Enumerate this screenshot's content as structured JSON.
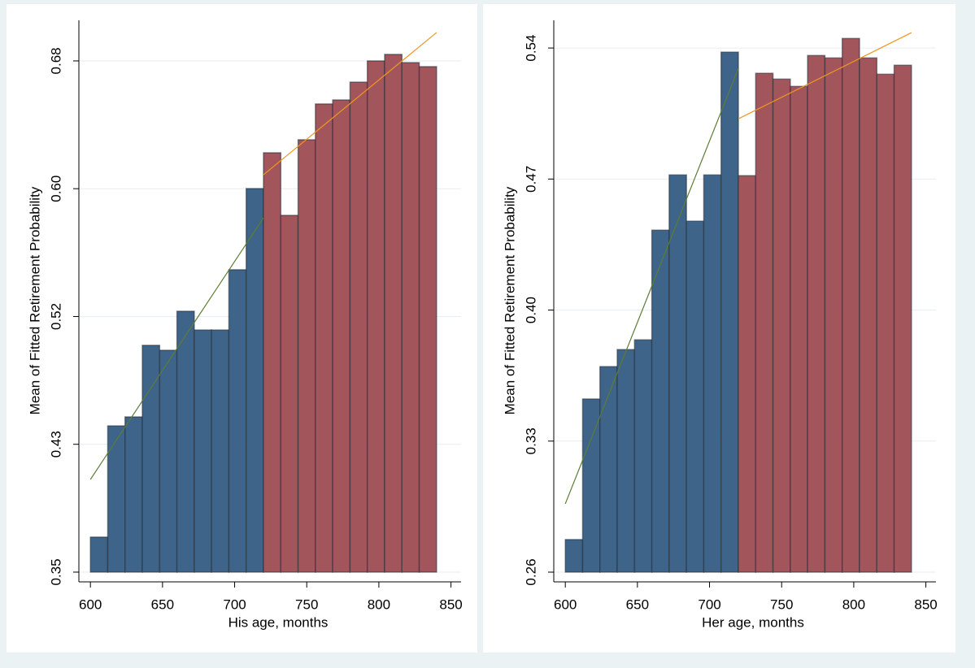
{
  "chart_data": [
    {
      "type": "histogram",
      "xlabel": "His age, months",
      "ylabel": "Mean of Fitted Retirement Probability",
      "bins": [
        600,
        612,
        624,
        636,
        648,
        660,
        672,
        684,
        696,
        708,
        720,
        732,
        744,
        756,
        768,
        780,
        792,
        804,
        816,
        828,
        840
      ],
      "values": [
        0.3726,
        0.4444,
        0.4502,
        0.4964,
        0.4932,
        0.5184,
        0.5063,
        0.5063,
        0.5452,
        0.5976,
        0.6207,
        0.5803,
        0.6291,
        0.6522,
        0.6548,
        0.6663,
        0.68,
        0.6842,
        0.6789,
        0.6763
      ],
      "bar_colors": [
        "#3f6489",
        "#3f6489",
        "#3f6489",
        "#3f6489",
        "#3f6489",
        "#3f6489",
        "#3f6489",
        "#3f6489",
        "#3f6489",
        "#3f6489",
        "#a3555c",
        "#a3555c",
        "#a3555c",
        "#a3555c",
        "#a3555c",
        "#a3555c",
        "#a3555c",
        "#a3555c",
        "#a3555c",
        "#a3555c"
      ],
      "lines": [
        {
          "x": [
            600,
            720
          ],
          "values": [
            0.4098,
            0.5787
          ],
          "color": "#5b7d34"
        },
        {
          "x": [
            720,
            840
          ],
          "values": [
            0.6065,
            0.6983
          ],
          "color": "#f0961e"
        }
      ],
      "xlim": [
        592,
        857
      ],
      "xticks": [
        600,
        650,
        700,
        750,
        800,
        850
      ],
      "ylim": [
        0.3437,
        0.7062
      ],
      "yticks": [
        {
          "value": 0.35,
          "label": "0.35"
        },
        {
          "value": 0.4325,
          "label": "0.43"
        },
        {
          "value": 0.515,
          "label": "0.52"
        },
        {
          "value": 0.5975,
          "label": "0.60"
        },
        {
          "value": 0.68,
          "label": "0.68"
        }
      ],
      "grid": true
    },
    {
      "type": "histogram",
      "xlabel": "Her age, months",
      "ylabel": "Mean of Fitted Retirement Probability",
      "bins": [
        600,
        612,
        624,
        636,
        648,
        660,
        672,
        684,
        696,
        708,
        720,
        732,
        744,
        756,
        768,
        780,
        792,
        804,
        816,
        828,
        840
      ],
      "values": [
        0.2774,
        0.3525,
        0.3698,
        0.3789,
        0.3841,
        0.4427,
        0.4722,
        0.4475,
        0.4722,
        0.5378,
        0.4718,
        0.5265,
        0.5234,
        0.5195,
        0.536,
        0.5347,
        0.5451,
        0.5347,
        0.526,
        0.5308
      ],
      "bar_colors": [
        "#3f6489",
        "#3f6489",
        "#3f6489",
        "#3f6489",
        "#3f6489",
        "#3f6489",
        "#3f6489",
        "#3f6489",
        "#3f6489",
        "#3f6489",
        "#a3555c",
        "#a3555c",
        "#a3555c",
        "#a3555c",
        "#a3555c",
        "#a3555c",
        "#a3555c",
        "#a3555c",
        "#a3555c",
        "#a3555c"
      ],
      "lines": [
        {
          "x": [
            600,
            720
          ],
          "values": [
            0.2965,
            0.5291
          ],
          "color": "#5b7d34"
        },
        {
          "x": [
            720,
            840
          ],
          "values": [
            0.5022,
            0.5482
          ],
          "color": "#f0961e"
        }
      ],
      "xlim": [
        592,
        857
      ],
      "xticks": [
        600,
        650,
        700,
        750,
        800,
        850
      ],
      "ylim": [
        0.2548,
        0.5548
      ],
      "yticks": [
        {
          "value": 0.26,
          "label": "0.26"
        },
        {
          "value": 0.33,
          "label": "0.33"
        },
        {
          "value": 0.4,
          "label": "0.40"
        },
        {
          "value": 0.47,
          "label": "0.47"
        },
        {
          "value": 0.54,
          "label": "0.54"
        }
      ],
      "grid": true
    }
  ]
}
